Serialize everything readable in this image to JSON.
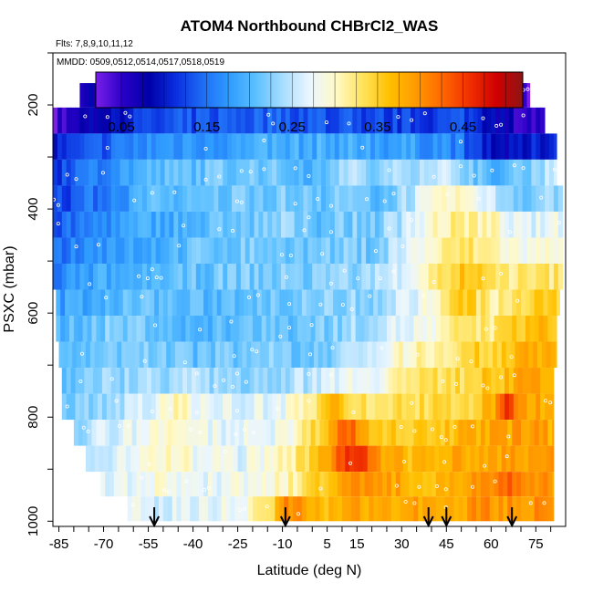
{
  "chart_data": {
    "type": "heatmap",
    "title": "ATOM4 Northbound CHBrCl2_WAS",
    "subtitle_flights": "Flts: 7,8,9,10,11,12",
    "subtitle_dates": "MMDD: 0509,0512,0514,0517,0518,0519",
    "xlabel": "Latitude (deg N)",
    "ylabel": "PSXC (mbar)",
    "xlim": [
      -87,
      85
    ],
    "ylim": [
      1010,
      100
    ],
    "x_ticks": [
      -85,
      -70,
      -55,
      -40,
      -25,
      -10,
      5,
      15,
      30,
      45,
      60,
      75
    ],
    "y_ticks": [
      200,
      400,
      600,
      800,
      1000
    ],
    "colorbar": {
      "min": 0.02,
      "max": 0.52,
      "ticks": [
        0.05,
        0.15,
        0.25,
        0.35,
        0.45
      ],
      "tick_labels": [
        "0.05",
        "0.15",
        "0.25",
        "0.35",
        "0.45"
      ],
      "colors": [
        "#7a1fe8",
        "#2b00c8",
        "#0000a8",
        "#0a2ee0",
        "#1e6cf5",
        "#2f9cff",
        "#5cc0ff",
        "#a6ddff",
        "#eaf6ff",
        "#fff9c8",
        "#ffe35c",
        "#ffc000",
        "#ff9a00",
        "#ff6600",
        "#f03000",
        "#d00000",
        "#8f1414"
      ]
    },
    "layers": [
      {
        "p": 180,
        "xmin": -78,
        "xmax": 73,
        "knots": [
          [
            -78,
            0.08
          ],
          [
            -55,
            0.06
          ],
          [
            -30,
            0.05
          ],
          [
            -10,
            0.05
          ],
          [
            10,
            0.05
          ],
          [
            30,
            0.05
          ],
          [
            50,
            0.06
          ],
          [
            65,
            0.04
          ],
          [
            73,
            0.03
          ]
        ]
      },
      {
        "p": 230,
        "xmin": -87,
        "xmax": 78,
        "knots": [
          [
            -87,
            0.04
          ],
          [
            -75,
            0.08
          ],
          [
            -55,
            0.12
          ],
          [
            -40,
            0.13
          ],
          [
            -25,
            0.14
          ],
          [
            -10,
            0.14
          ],
          [
            10,
            0.13
          ],
          [
            30,
            0.12
          ],
          [
            40,
            0.12
          ],
          [
            50,
            0.13
          ],
          [
            60,
            0.09
          ],
          [
            70,
            0.05
          ],
          [
            78,
            0.05
          ]
        ]
      },
      {
        "p": 280,
        "xmin": -87,
        "xmax": 82,
        "knots": [
          [
            -87,
            0.1
          ],
          [
            -70,
            0.14
          ],
          [
            -55,
            0.17
          ],
          [
            -40,
            0.18
          ],
          [
            -25,
            0.18
          ],
          [
            -10,
            0.19
          ],
          [
            10,
            0.19
          ],
          [
            30,
            0.18
          ],
          [
            45,
            0.17
          ],
          [
            55,
            0.12
          ],
          [
            65,
            0.08
          ],
          [
            82,
            0.12
          ]
        ]
      },
      {
        "p": 330,
        "xmin": -87,
        "xmax": 82,
        "knots": [
          [
            -87,
            0.12
          ],
          [
            -70,
            0.17
          ],
          [
            -55,
            0.2
          ],
          [
            -40,
            0.21
          ],
          [
            -25,
            0.22
          ],
          [
            -10,
            0.21
          ],
          [
            0,
            0.2
          ],
          [
            10,
            0.25
          ],
          [
            20,
            0.22
          ],
          [
            30,
            0.24
          ],
          [
            40,
            0.26
          ],
          [
            50,
            0.24
          ],
          [
            60,
            0.18
          ],
          [
            70,
            0.22
          ],
          [
            82,
            0.26
          ]
        ]
      },
      {
        "p": 380,
        "xmin": -87,
        "xmax": 84,
        "knots": [
          [
            -87,
            0.12
          ],
          [
            -70,
            0.16
          ],
          [
            -55,
            0.2
          ],
          [
            -40,
            0.2
          ],
          [
            -25,
            0.22
          ],
          [
            -10,
            0.22
          ],
          [
            0,
            0.21
          ],
          [
            10,
            0.22
          ],
          [
            20,
            0.2
          ],
          [
            30,
            0.24
          ],
          [
            40,
            0.28
          ],
          [
            50,
            0.3
          ],
          [
            60,
            0.25
          ],
          [
            70,
            0.22
          ],
          [
            84,
            0.24
          ]
        ]
      },
      {
        "p": 430,
        "xmin": -87,
        "xmax": 84,
        "knots": [
          [
            -87,
            0.13
          ],
          [
            -70,
            0.17
          ],
          [
            -55,
            0.19
          ],
          [
            -40,
            0.2
          ],
          [
            -25,
            0.21
          ],
          [
            -10,
            0.23
          ],
          [
            0,
            0.21
          ],
          [
            10,
            0.22
          ],
          [
            20,
            0.22
          ],
          [
            30,
            0.25
          ],
          [
            40,
            0.3
          ],
          [
            50,
            0.32
          ],
          [
            60,
            0.3
          ],
          [
            70,
            0.26
          ],
          [
            84,
            0.28
          ]
        ]
      },
      {
        "p": 480,
        "xmin": -87,
        "xmax": 84,
        "knots": [
          [
            -87,
            0.15
          ],
          [
            -70,
            0.18
          ],
          [
            -55,
            0.19
          ],
          [
            -40,
            0.21
          ],
          [
            -25,
            0.22
          ],
          [
            -10,
            0.22
          ],
          [
            0,
            0.21
          ],
          [
            10,
            0.22
          ],
          [
            20,
            0.22
          ],
          [
            30,
            0.26
          ],
          [
            40,
            0.3
          ],
          [
            50,
            0.33
          ],
          [
            60,
            0.31
          ],
          [
            70,
            0.28
          ],
          [
            84,
            0.3
          ]
        ]
      },
      {
        "p": 530,
        "xmin": -87,
        "xmax": 84,
        "knots": [
          [
            -87,
            0.16
          ],
          [
            -70,
            0.19
          ],
          [
            -55,
            0.19
          ],
          [
            -40,
            0.21
          ],
          [
            -25,
            0.22
          ],
          [
            -10,
            0.22
          ],
          [
            0,
            0.22
          ],
          [
            10,
            0.23
          ],
          [
            20,
            0.24
          ],
          [
            30,
            0.27
          ],
          [
            40,
            0.32
          ],
          [
            50,
            0.36
          ],
          [
            60,
            0.33
          ],
          [
            70,
            0.32
          ],
          [
            84,
            0.33
          ]
        ]
      },
      {
        "p": 580,
        "xmin": -86,
        "xmax": 83,
        "knots": [
          [
            -86,
            0.18
          ],
          [
            -70,
            0.2
          ],
          [
            -55,
            0.21
          ],
          [
            -40,
            0.2
          ],
          [
            -25,
            0.21
          ],
          [
            -10,
            0.22
          ],
          [
            0,
            0.22
          ],
          [
            10,
            0.23
          ],
          [
            20,
            0.23
          ],
          [
            30,
            0.26
          ],
          [
            40,
            0.29
          ],
          [
            50,
            0.36
          ],
          [
            60,
            0.31
          ],
          [
            70,
            0.34
          ],
          [
            83,
            0.35
          ]
        ]
      },
      {
        "p": 630,
        "xmin": -86,
        "xmax": 82,
        "knots": [
          [
            -86,
            0.2
          ],
          [
            -70,
            0.22
          ],
          [
            -55,
            0.22
          ],
          [
            -40,
            0.19
          ],
          [
            -25,
            0.21
          ],
          [
            -10,
            0.21
          ],
          [
            0,
            0.22
          ],
          [
            10,
            0.23
          ],
          [
            20,
            0.25
          ],
          [
            30,
            0.27
          ],
          [
            40,
            0.28
          ],
          [
            50,
            0.33
          ],
          [
            60,
            0.32
          ],
          [
            70,
            0.36
          ],
          [
            82,
            0.37
          ]
        ]
      },
      {
        "p": 680,
        "xmin": -85,
        "xmax": 82,
        "knots": [
          [
            -85,
            0.2
          ],
          [
            -70,
            0.22
          ],
          [
            -55,
            0.22
          ],
          [
            -40,
            0.21
          ],
          [
            -25,
            0.22
          ],
          [
            -10,
            0.22
          ],
          [
            0,
            0.21
          ],
          [
            10,
            0.24
          ],
          [
            20,
            0.26
          ],
          [
            30,
            0.3
          ],
          [
            40,
            0.32
          ],
          [
            50,
            0.34
          ],
          [
            60,
            0.35
          ],
          [
            70,
            0.38
          ],
          [
            82,
            0.38
          ]
        ]
      },
      {
        "p": 730,
        "xmin": -84,
        "xmax": 81,
        "knots": [
          [
            -84,
            0.21
          ],
          [
            -70,
            0.23
          ],
          [
            -55,
            0.24
          ],
          [
            -40,
            0.24
          ],
          [
            -25,
            0.23
          ],
          [
            -10,
            0.24
          ],
          [
            0,
            0.25
          ],
          [
            10,
            0.28
          ],
          [
            20,
            0.28
          ],
          [
            30,
            0.32
          ],
          [
            40,
            0.33
          ],
          [
            50,
            0.34
          ],
          [
            60,
            0.36
          ],
          [
            70,
            0.38
          ],
          [
            81,
            0.38
          ]
        ]
      },
      {
        "p": 780,
        "xmin": -84,
        "xmax": 81,
        "knots": [
          [
            -84,
            0.22
          ],
          [
            -70,
            0.24
          ],
          [
            -55,
            0.26
          ],
          [
            -45,
            0.32
          ],
          [
            -40,
            0.28
          ],
          [
            -25,
            0.26
          ],
          [
            -10,
            0.28
          ],
          [
            0,
            0.33
          ],
          [
            5,
            0.38
          ],
          [
            10,
            0.36
          ],
          [
            20,
            0.31
          ],
          [
            30,
            0.34
          ],
          [
            40,
            0.34
          ],
          [
            50,
            0.34
          ],
          [
            60,
            0.37
          ],
          [
            65,
            0.46
          ],
          [
            70,
            0.39
          ],
          [
            81,
            0.38
          ]
        ]
      },
      {
        "p": 830,
        "xmin": -80,
        "xmax": 81,
        "knots": [
          [
            -80,
            0.24
          ],
          [
            -70,
            0.26
          ],
          [
            -55,
            0.28
          ],
          [
            -45,
            0.3
          ],
          [
            -40,
            0.28
          ],
          [
            -25,
            0.27
          ],
          [
            -10,
            0.28
          ],
          [
            0,
            0.34
          ],
          [
            10,
            0.43
          ],
          [
            15,
            0.41
          ],
          [
            20,
            0.35
          ],
          [
            30,
            0.36
          ],
          [
            40,
            0.36
          ],
          [
            50,
            0.37
          ],
          [
            60,
            0.38
          ],
          [
            70,
            0.39
          ],
          [
            81,
            0.38
          ]
        ]
      },
      {
        "p": 880,
        "xmin": -76,
        "xmax": 81,
        "knots": [
          [
            -76,
            0.24
          ],
          [
            -70,
            0.26
          ],
          [
            -55,
            0.3
          ],
          [
            -45,
            0.3
          ],
          [
            -40,
            0.28
          ],
          [
            -25,
            0.27
          ],
          [
            -10,
            0.3
          ],
          [
            0,
            0.36
          ],
          [
            10,
            0.44
          ],
          [
            15,
            0.46
          ],
          [
            20,
            0.4
          ],
          [
            30,
            0.37
          ],
          [
            40,
            0.37
          ],
          [
            50,
            0.38
          ],
          [
            60,
            0.39
          ],
          [
            70,
            0.38
          ],
          [
            81,
            0.39
          ]
        ]
      },
      {
        "p": 930,
        "xmin": -71,
        "xmax": 81,
        "knots": [
          [
            -71,
            0.26
          ],
          [
            -60,
            0.28
          ],
          [
            -50,
            0.29
          ],
          [
            -40,
            0.27
          ],
          [
            -25,
            0.28
          ],
          [
            -10,
            0.3
          ],
          [
            0,
            0.34
          ],
          [
            10,
            0.4
          ],
          [
            20,
            0.39
          ],
          [
            30,
            0.38
          ],
          [
            40,
            0.37
          ],
          [
            50,
            0.39
          ],
          [
            60,
            0.4
          ],
          [
            65,
            0.44
          ],
          [
            70,
            0.4
          ],
          [
            81,
            0.4
          ]
        ]
      },
      {
        "p": 975,
        "xmin": -62,
        "xmax": 81,
        "knots": [
          [
            -62,
            0.27
          ],
          [
            -55,
            0.26
          ],
          [
            -40,
            0.27
          ],
          [
            -25,
            0.28
          ],
          [
            -15,
            0.33
          ],
          [
            -10,
            0.4
          ],
          [
            0,
            0.38
          ],
          [
            5,
            0.36
          ],
          [
            10,
            0.38
          ],
          [
            20,
            0.38
          ],
          [
            30,
            0.39
          ],
          [
            40,
            0.38
          ],
          [
            50,
            0.39
          ],
          [
            60,
            0.4
          ],
          [
            70,
            0.39
          ],
          [
            81,
            0.4
          ]
        ]
      }
    ],
    "arrows_lat": [
      -53,
      -9,
      39,
      45,
      67
    ]
  }
}
